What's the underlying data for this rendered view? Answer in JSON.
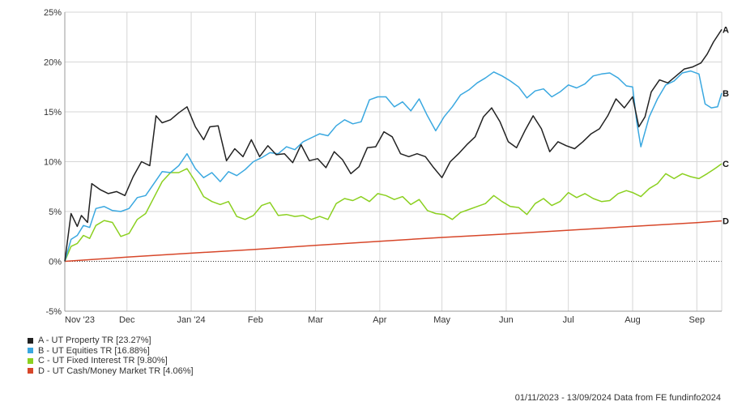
{
  "chart_data": {
    "type": "line",
    "y_unit": "%",
    "ylim": [
      -5,
      25
    ],
    "y_ticks": [
      "25%",
      "20%",
      "15%",
      "10%",
      "5%",
      "0%",
      "-5%"
    ],
    "y_tick_values": [
      25,
      20,
      15,
      10,
      5,
      0,
      -5
    ],
    "x_ticks": [
      "Nov '23",
      "Dec",
      "Jan '24",
      "Feb",
      "Mar",
      "Apr",
      "May",
      "Jun",
      "Jul",
      "Aug",
      "Sep"
    ],
    "x_tick_dates": [
      "2023-11-01",
      "2023-12-01",
      "2024-01-01",
      "2024-02-01",
      "2024-03-01",
      "2024-04-01",
      "2024-05-01",
      "2024-06-01",
      "2024-07-01",
      "2024-08-01",
      "2024-09-01"
    ],
    "x_range": [
      "2023-11-01",
      "2024-09-13"
    ],
    "grid": true,
    "legend_position": "bottom-left",
    "series": [
      {
        "id": "A",
        "legend": "A - UT Property TR [23.27%]",
        "color": "#222222",
        "points": [
          [
            "2023-11-01",
            0
          ],
          [
            "2023-11-04",
            4.8
          ],
          [
            "2023-11-07",
            3.5
          ],
          [
            "2023-11-09",
            4.6
          ],
          [
            "2023-11-12",
            3.9
          ],
          [
            "2023-11-14",
            7.8
          ],
          [
            "2023-11-18",
            7.2
          ],
          [
            "2023-11-22",
            6.8
          ],
          [
            "2023-11-26",
            7.0
          ],
          [
            "2023-11-30",
            6.6
          ],
          [
            "2023-12-04",
            8.5
          ],
          [
            "2023-12-08",
            10.0
          ],
          [
            "2023-12-12",
            9.6
          ],
          [
            "2023-12-15",
            14.6
          ],
          [
            "2023-12-18",
            13.9
          ],
          [
            "2023-12-22",
            14.2
          ],
          [
            "2023-12-26",
            14.9
          ],
          [
            "2023-12-30",
            15.5
          ],
          [
            "2024-01-03",
            13.5
          ],
          [
            "2024-01-07",
            12.2
          ],
          [
            "2024-01-10",
            13.5
          ],
          [
            "2024-01-14",
            13.6
          ],
          [
            "2024-01-18",
            10.1
          ],
          [
            "2024-01-22",
            11.3
          ],
          [
            "2024-01-26",
            10.5
          ],
          [
            "2024-01-30",
            12.2
          ],
          [
            "2024-02-03",
            10.5
          ],
          [
            "2024-02-07",
            11.6
          ],
          [
            "2024-02-11",
            10.7
          ],
          [
            "2024-02-15",
            10.8
          ],
          [
            "2024-02-19",
            9.9
          ],
          [
            "2024-02-23",
            11.7
          ],
          [
            "2024-02-27",
            10.1
          ],
          [
            "2024-03-02",
            10.3
          ],
          [
            "2024-03-06",
            9.4
          ],
          [
            "2024-03-10",
            11.0
          ],
          [
            "2024-03-14",
            10.2
          ],
          [
            "2024-03-18",
            8.8
          ],
          [
            "2024-03-22",
            9.5
          ],
          [
            "2024-03-26",
            11.4
          ],
          [
            "2024-03-30",
            11.5
          ],
          [
            "2024-04-03",
            13.0
          ],
          [
            "2024-04-07",
            12.5
          ],
          [
            "2024-04-11",
            10.8
          ],
          [
            "2024-04-15",
            10.5
          ],
          [
            "2024-04-19",
            10.8
          ],
          [
            "2024-04-23",
            10.5
          ],
          [
            "2024-04-27",
            9.4
          ],
          [
            "2024-05-01",
            8.4
          ],
          [
            "2024-05-05",
            10.0
          ],
          [
            "2024-05-09",
            10.8
          ],
          [
            "2024-05-13",
            11.7
          ],
          [
            "2024-05-17",
            12.5
          ],
          [
            "2024-05-21",
            14.5
          ],
          [
            "2024-05-25",
            15.4
          ],
          [
            "2024-05-29",
            14.0
          ],
          [
            "2024-06-02",
            12.0
          ],
          [
            "2024-06-06",
            11.4
          ],
          [
            "2024-06-10",
            13.1
          ],
          [
            "2024-06-14",
            14.6
          ],
          [
            "2024-06-18",
            13.3
          ],
          [
            "2024-06-22",
            11.0
          ],
          [
            "2024-06-26",
            12.0
          ],
          [
            "2024-06-30",
            11.6
          ],
          [
            "2024-07-04",
            11.3
          ],
          [
            "2024-07-08",
            12.0
          ],
          [
            "2024-07-12",
            12.8
          ],
          [
            "2024-07-16",
            13.3
          ],
          [
            "2024-07-20",
            14.6
          ],
          [
            "2024-07-24",
            16.3
          ],
          [
            "2024-07-28",
            15.4
          ],
          [
            "2024-08-01",
            16.5
          ],
          [
            "2024-08-04",
            13.5
          ],
          [
            "2024-08-07",
            14.5
          ],
          [
            "2024-08-10",
            17.0
          ],
          [
            "2024-08-14",
            18.2
          ],
          [
            "2024-08-18",
            17.9
          ],
          [
            "2024-08-22",
            18.6
          ],
          [
            "2024-08-26",
            19.3
          ],
          [
            "2024-08-30",
            19.5
          ],
          [
            "2024-09-03",
            19.9
          ],
          [
            "2024-09-06",
            20.8
          ],
          [
            "2024-09-09",
            22.0
          ],
          [
            "2024-09-13",
            23.27
          ]
        ]
      },
      {
        "id": "B",
        "legend": "B - UT Equities TR [16.88%]",
        "color": "#3aa8e0",
        "points": [
          [
            "2023-11-01",
            0
          ],
          [
            "2023-11-04",
            2.2
          ],
          [
            "2023-11-07",
            2.6
          ],
          [
            "2023-11-10",
            3.6
          ],
          [
            "2023-11-13",
            3.4
          ],
          [
            "2023-11-16",
            5.3
          ],
          [
            "2023-11-20",
            5.5
          ],
          [
            "2023-11-24",
            5.1
          ],
          [
            "2023-11-28",
            5.0
          ],
          [
            "2023-12-02",
            5.3
          ],
          [
            "2023-12-06",
            6.4
          ],
          [
            "2023-12-10",
            6.6
          ],
          [
            "2023-12-14",
            7.8
          ],
          [
            "2023-12-18",
            9.0
          ],
          [
            "2023-12-22",
            8.9
          ],
          [
            "2023-12-26",
            9.6
          ],
          [
            "2023-12-30",
            10.8
          ],
          [
            "2024-01-03",
            9.3
          ],
          [
            "2024-01-07",
            8.4
          ],
          [
            "2024-01-11",
            8.9
          ],
          [
            "2024-01-15",
            8.0
          ],
          [
            "2024-01-19",
            9.0
          ],
          [
            "2024-01-23",
            8.6
          ],
          [
            "2024-01-27",
            9.2
          ],
          [
            "2024-01-31",
            10.0
          ],
          [
            "2024-02-04",
            10.4
          ],
          [
            "2024-02-08",
            10.9
          ],
          [
            "2024-02-12",
            10.8
          ],
          [
            "2024-02-16",
            11.5
          ],
          [
            "2024-02-20",
            11.2
          ],
          [
            "2024-02-24",
            12.0
          ],
          [
            "2024-02-28",
            12.4
          ],
          [
            "2024-03-03",
            12.8
          ],
          [
            "2024-03-07",
            12.6
          ],
          [
            "2024-03-11",
            13.6
          ],
          [
            "2024-03-15",
            14.2
          ],
          [
            "2024-03-19",
            13.8
          ],
          [
            "2024-03-23",
            14.0
          ],
          [
            "2024-03-27",
            16.2
          ],
          [
            "2024-03-31",
            16.5
          ],
          [
            "2024-04-04",
            16.5
          ],
          [
            "2024-04-08",
            15.5
          ],
          [
            "2024-04-12",
            16.0
          ],
          [
            "2024-04-16",
            15.1
          ],
          [
            "2024-04-20",
            16.3
          ],
          [
            "2024-04-24",
            14.6
          ],
          [
            "2024-04-28",
            13.1
          ],
          [
            "2024-05-02",
            14.5
          ],
          [
            "2024-05-06",
            15.5
          ],
          [
            "2024-05-10",
            16.7
          ],
          [
            "2024-05-14",
            17.2
          ],
          [
            "2024-05-18",
            17.9
          ],
          [
            "2024-05-22",
            18.4
          ],
          [
            "2024-05-26",
            19.0
          ],
          [
            "2024-05-30",
            18.6
          ],
          [
            "2024-06-03",
            18.1
          ],
          [
            "2024-06-07",
            17.5
          ],
          [
            "2024-06-11",
            16.4
          ],
          [
            "2024-06-15",
            17.1
          ],
          [
            "2024-06-19",
            17.3
          ],
          [
            "2024-06-23",
            16.5
          ],
          [
            "2024-06-27",
            17.0
          ],
          [
            "2024-07-01",
            17.7
          ],
          [
            "2024-07-05",
            17.4
          ],
          [
            "2024-07-09",
            17.8
          ],
          [
            "2024-07-13",
            18.6
          ],
          [
            "2024-07-17",
            18.8
          ],
          [
            "2024-07-21",
            18.9
          ],
          [
            "2024-07-25",
            18.4
          ],
          [
            "2024-07-29",
            17.6
          ],
          [
            "2024-08-01",
            17.5
          ],
          [
            "2024-08-03",
            14.0
          ],
          [
            "2024-08-05",
            11.5
          ],
          [
            "2024-08-09",
            14.5
          ],
          [
            "2024-08-13",
            16.3
          ],
          [
            "2024-08-17",
            17.7
          ],
          [
            "2024-08-21",
            18.1
          ],
          [
            "2024-08-25",
            18.9
          ],
          [
            "2024-08-29",
            19.1
          ],
          [
            "2024-09-02",
            18.8
          ],
          [
            "2024-09-05",
            15.8
          ],
          [
            "2024-09-08",
            15.4
          ],
          [
            "2024-09-11",
            15.5
          ],
          [
            "2024-09-13",
            16.88
          ]
        ]
      },
      {
        "id": "C",
        "legend": "C - UT Fixed Interest TR [9.80%]",
        "color": "#8bd020",
        "points": [
          [
            "2023-11-01",
            0
          ],
          [
            "2023-11-04",
            1.5
          ],
          [
            "2023-11-07",
            1.8
          ],
          [
            "2023-11-10",
            2.6
          ],
          [
            "2023-11-13",
            2.3
          ],
          [
            "2023-11-16",
            3.6
          ],
          [
            "2023-11-20",
            4.1
          ],
          [
            "2023-11-24",
            3.9
          ],
          [
            "2023-11-28",
            2.5
          ],
          [
            "2023-12-02",
            2.8
          ],
          [
            "2023-12-06",
            4.2
          ],
          [
            "2023-12-10",
            4.8
          ],
          [
            "2023-12-14",
            6.4
          ],
          [
            "2023-12-18",
            8.0
          ],
          [
            "2023-12-22",
            8.9
          ],
          [
            "2023-12-26",
            8.9
          ],
          [
            "2023-12-30",
            9.3
          ],
          [
            "2024-01-03",
            8.0
          ],
          [
            "2024-01-07",
            6.5
          ],
          [
            "2024-01-11",
            6.0
          ],
          [
            "2024-01-15",
            5.7
          ],
          [
            "2024-01-19",
            6.0
          ],
          [
            "2024-01-23",
            4.5
          ],
          [
            "2024-01-27",
            4.2
          ],
          [
            "2024-01-31",
            4.6
          ],
          [
            "2024-02-04",
            5.6
          ],
          [
            "2024-02-08",
            5.9
          ],
          [
            "2024-02-12",
            4.6
          ],
          [
            "2024-02-16",
            4.7
          ],
          [
            "2024-02-20",
            4.5
          ],
          [
            "2024-02-24",
            4.6
          ],
          [
            "2024-02-28",
            4.2
          ],
          [
            "2024-03-03",
            4.5
          ],
          [
            "2024-03-07",
            4.2
          ],
          [
            "2024-03-11",
            5.8
          ],
          [
            "2024-03-15",
            6.3
          ],
          [
            "2024-03-19",
            6.1
          ],
          [
            "2024-03-23",
            6.5
          ],
          [
            "2024-03-27",
            6.0
          ],
          [
            "2024-03-31",
            6.8
          ],
          [
            "2024-04-04",
            6.6
          ],
          [
            "2024-04-08",
            6.2
          ],
          [
            "2024-04-12",
            6.5
          ],
          [
            "2024-04-16",
            5.7
          ],
          [
            "2024-04-20",
            6.2
          ],
          [
            "2024-04-24",
            5.1
          ],
          [
            "2024-04-28",
            4.8
          ],
          [
            "2024-05-02",
            4.7
          ],
          [
            "2024-05-06",
            4.2
          ],
          [
            "2024-05-10",
            4.9
          ],
          [
            "2024-05-14",
            5.2
          ],
          [
            "2024-05-18",
            5.5
          ],
          [
            "2024-05-22",
            5.8
          ],
          [
            "2024-05-26",
            6.6
          ],
          [
            "2024-05-30",
            6.0
          ],
          [
            "2024-06-03",
            5.5
          ],
          [
            "2024-06-07",
            5.4
          ],
          [
            "2024-06-11",
            4.7
          ],
          [
            "2024-06-15",
            5.8
          ],
          [
            "2024-06-19",
            6.3
          ],
          [
            "2024-06-23",
            5.6
          ],
          [
            "2024-06-27",
            6.0
          ],
          [
            "2024-07-01",
            6.9
          ],
          [
            "2024-07-05",
            6.4
          ],
          [
            "2024-07-09",
            6.8
          ],
          [
            "2024-07-13",
            6.3
          ],
          [
            "2024-07-17",
            6.0
          ],
          [
            "2024-07-21",
            6.1
          ],
          [
            "2024-07-25",
            6.8
          ],
          [
            "2024-07-29",
            7.1
          ],
          [
            "2024-08-01",
            6.9
          ],
          [
            "2024-08-05",
            6.5
          ],
          [
            "2024-08-09",
            7.3
          ],
          [
            "2024-08-13",
            7.8
          ],
          [
            "2024-08-17",
            8.8
          ],
          [
            "2024-08-21",
            8.3
          ],
          [
            "2024-08-25",
            8.8
          ],
          [
            "2024-08-29",
            8.5
          ],
          [
            "2024-09-02",
            8.3
          ],
          [
            "2024-09-06",
            8.8
          ],
          [
            "2024-09-09",
            9.2
          ],
          [
            "2024-09-11",
            9.5
          ],
          [
            "2024-09-13",
            9.8
          ]
        ]
      },
      {
        "id": "D",
        "legend": "D - UT Cash/Money Market TR [4.06%]",
        "color": "#d7472a",
        "points": [
          [
            "2023-11-01",
            0
          ],
          [
            "2023-12-01",
            0.42
          ],
          [
            "2024-01-01",
            0.82
          ],
          [
            "2024-02-01",
            1.2
          ],
          [
            "2024-03-01",
            1.6
          ],
          [
            "2024-04-01",
            2.02
          ],
          [
            "2024-05-01",
            2.4
          ],
          [
            "2024-06-01",
            2.75
          ],
          [
            "2024-07-01",
            3.12
          ],
          [
            "2024-08-01",
            3.5
          ],
          [
            "2024-09-01",
            3.88
          ],
          [
            "2024-09-13",
            4.06
          ]
        ]
      }
    ]
  },
  "footer": {
    "text": "01/11/2023 - 13/09/2024 Data from FE fundinfo2024"
  }
}
